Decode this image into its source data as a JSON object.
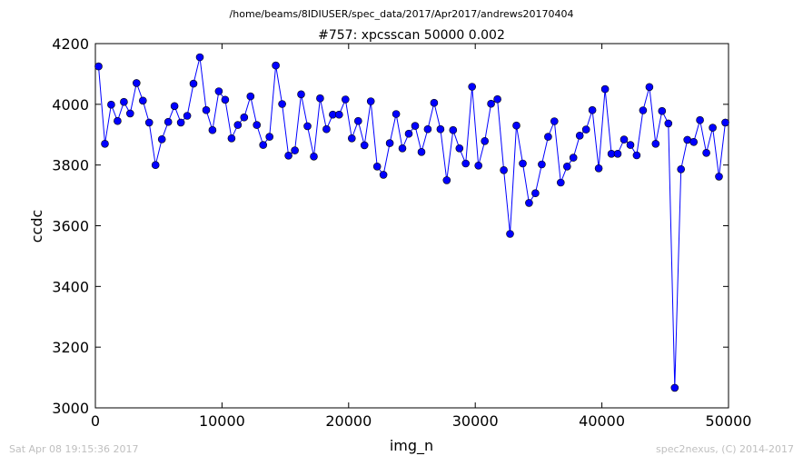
{
  "header": {
    "path": "/home/beams/8IDIUSER/spec_data/2017/Apr2017/andrews20170404"
  },
  "footer": {
    "timestamp": "Sat Apr 08 19:15:36 2017",
    "credit": "spec2nexus, (C) 2014-2017"
  },
  "colors": {
    "series": "#0000ff",
    "axes": "#000000",
    "footer_text": "#bfbfbf"
  },
  "chart_data": {
    "type": "line",
    "title": "#757: xpcsscan 50000 0.002",
    "xlabel": "img_n",
    "ylabel": "ccdc",
    "xlim": [
      0,
      50000
    ],
    "ylim": [
      3000,
      4200
    ],
    "xticks": [
      0,
      10000,
      20000,
      30000,
      40000,
      50000
    ],
    "yticks": [
      3000,
      3200,
      3400,
      3600,
      3800,
      4000,
      4200
    ],
    "grid": false,
    "legend": "none",
    "markers": "circle",
    "series": [
      {
        "x": [
          250,
          750,
          1250,
          1750,
          2250,
          2750,
          3250,
          3750,
          4250,
          4750,
          5250,
          5750,
          6250,
          6750,
          7250,
          7750,
          8250,
          8750,
          9250,
          9750,
          10250,
          10750,
          11250,
          11750,
          12250,
          12750,
          13250,
          13750,
          14250,
          14750,
          15250,
          15750,
          16250,
          16750,
          17250,
          17750,
          18250,
          18750,
          19250,
          19750,
          20250,
          20750,
          21250,
          21750,
          22250,
          22750,
          23250,
          23750,
          24250,
          24750,
          25250,
          25750,
          26250,
          26750,
          27250,
          27750,
          28250,
          28750,
          29250,
          29750,
          30250,
          30750,
          31250,
          31750,
          32250,
          32750,
          33250,
          33750,
          34250,
          34750,
          35250,
          35750,
          36250,
          36750,
          37250,
          37750,
          38250,
          38750,
          39250,
          39750,
          40250,
          40750,
          41250,
          41750,
          42250,
          42750,
          43250,
          43750,
          44250,
          44750,
          45250,
          45750,
          46250,
          46750,
          47250,
          47750,
          48250,
          48750,
          49250,
          49750
        ],
        "y": [
          4125,
          3870,
          3999,
          3945,
          4008,
          3970,
          4070,
          4012,
          3940,
          3800,
          3885,
          3942,
          3994,
          3940,
          3962,
          4068,
          4155,
          3981,
          3915,
          4043,
          4015,
          3888,
          3932,
          3957,
          4026,
          3932,
          3866,
          3893,
          4128,
          4001,
          3831,
          3848,
          4033,
          3928,
          3828,
          4020,
          3918,
          3966,
          3966,
          4016,
          3888,
          3945,
          3865,
          4010,
          3795,
          3768,
          3872,
          3968,
          3855,
          3903,
          3929,
          3843,
          3918,
          4005,
          3918,
          3750,
          3915,
          3855,
          3805,
          4058,
          3798,
          3879,
          4002,
          4017,
          3783,
          3573,
          3930,
          3805,
          3675,
          3707,
          3802,
          3893,
          3944,
          3742,
          3795,
          3824,
          3897,
          3917,
          3981,
          3789,
          4050,
          3837,
          3837,
          3884,
          3866,
          3832,
          3980,
          4057,
          3870,
          3978,
          3937,
          3066,
          3786,
          3883,
          3876,
          3948,
          3840,
          3923,
          3762,
          3940
        ]
      }
    ]
  }
}
